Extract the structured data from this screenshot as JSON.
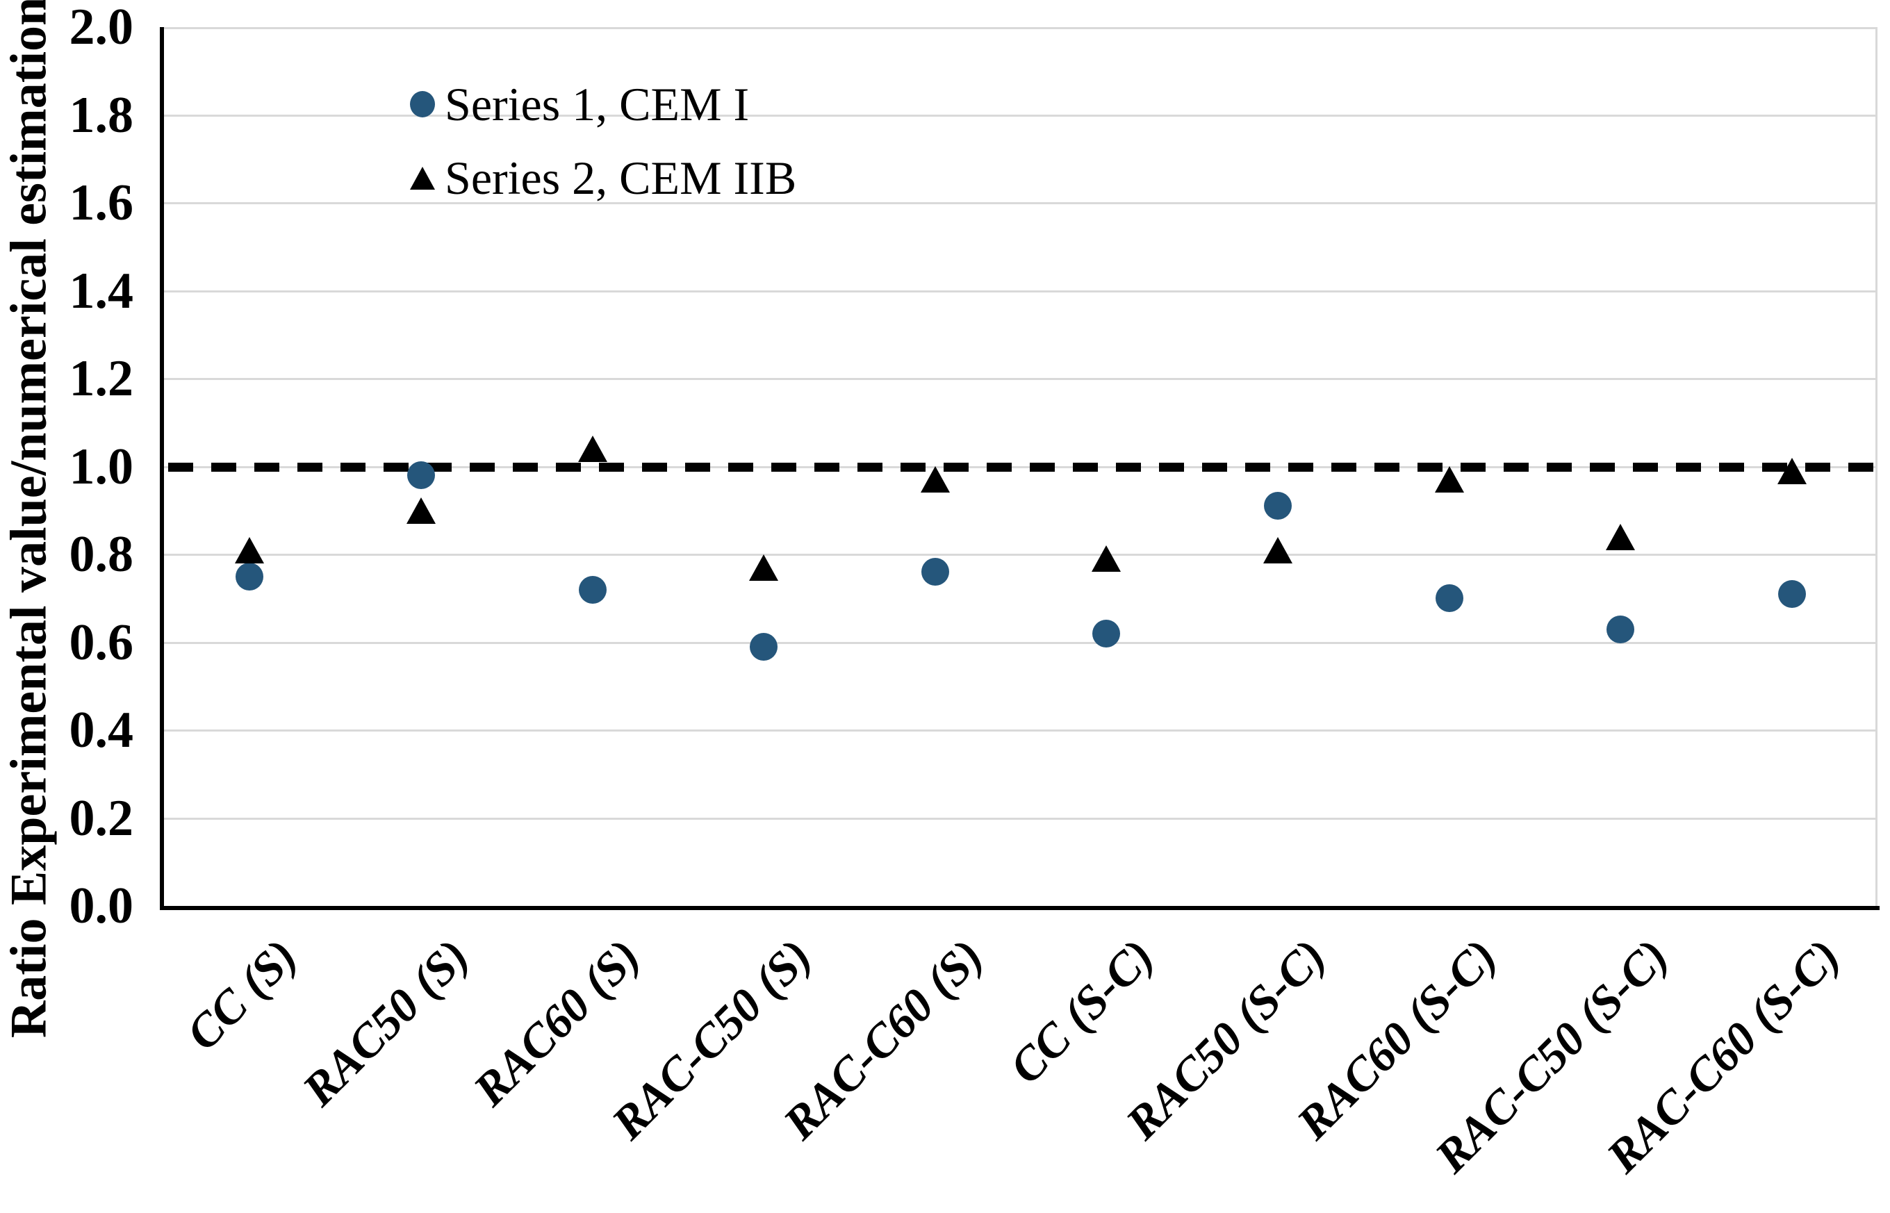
{
  "chart_data": {
    "type": "scatter",
    "title": "",
    "xlabel": "",
    "ylabel": "Ratio Experimental value/numerical estimation",
    "ylim": [
      0.0,
      2.0
    ],
    "y_tick_step": 0.2,
    "y_tick_labels": [
      "2.0",
      "1.8",
      "1.6",
      "1.4",
      "1.2",
      "1.0",
      "0.8",
      "0.6",
      "0.4",
      "0.2",
      "0.0"
    ],
    "grid": true,
    "gridline_color": "#d9d9d9",
    "legend_position": "top-left-inside",
    "categories": [
      "CC (S)",
      "RAC50 (S)",
      "RAC60 (S)",
      "RAC-C50 (S)",
      "RAC-C60 (S)",
      "CC (S-C)",
      "RAC50 (S-C)",
      "RAC60 (S-C)",
      "RAC-C50 (S-C)",
      "RAC-C60 (S-C)"
    ],
    "series": [
      {
        "name": "Series 1, CEM I",
        "marker": "circle",
        "color": "#25567b",
        "values": [
          0.75,
          0.98,
          0.72,
          0.59,
          0.76,
          0.62,
          0.91,
          0.7,
          0.63,
          0.71
        ]
      },
      {
        "name": "Series 2, CEM IIB",
        "marker": "triangle",
        "color": "#000000",
        "values": [
          0.81,
          0.9,
          1.04,
          0.77,
          0.97,
          0.79,
          0.81,
          0.97,
          0.84,
          0.99
        ]
      }
    ],
    "reference_line": {
      "y": 1.0,
      "style": "dashed",
      "color": "#000000"
    }
  }
}
